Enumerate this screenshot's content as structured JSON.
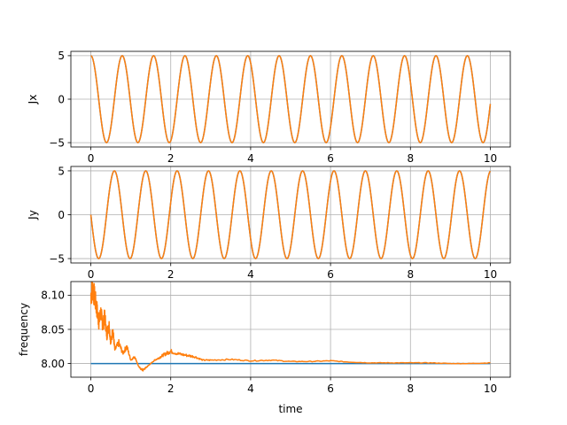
{
  "colors": {
    "blue": "#1f77b4",
    "orange": "#ff7f0e",
    "grid": "#b0b0b0"
  },
  "chart_data": [
    {
      "type": "line",
      "ylabel": "Jx",
      "xlabel": "",
      "xlim": [
        -0.5,
        10.5
      ],
      "ylim": [
        -5.5,
        5.5
      ],
      "xticks": [
        "0",
        "2",
        "4",
        "6",
        "8",
        "10"
      ],
      "yticks": [
        "5",
        "0",
        "−5"
      ],
      "grid": true,
      "series": [
        {
          "color": "#1f77b4",
          "function": "5*cos(8*t)",
          "t_range": [
            0,
            10
          ]
        },
        {
          "color": "#ff7f0e",
          "function": "5*cos(8*t)",
          "t_range": [
            0,
            10
          ]
        }
      ]
    },
    {
      "type": "line",
      "ylabel": "Jy",
      "xlabel": "",
      "xlim": [
        -0.5,
        10.5
      ],
      "ylim": [
        -5.5,
        5.5
      ],
      "xticks": [
        "0",
        "2",
        "4",
        "6",
        "8",
        "10"
      ],
      "yticks": [
        "5",
        "0",
        "−5"
      ],
      "grid": true,
      "series": [
        {
          "color": "#1f77b4",
          "function": "-5*sin(8*t)",
          "t_range": [
            0,
            10
          ]
        },
        {
          "color": "#ff7f0e",
          "function": "-5*sin(8*t)",
          "t_range": [
            0,
            10
          ]
        }
      ]
    },
    {
      "type": "line",
      "ylabel": "frequency",
      "xlabel": "time",
      "xlim": [
        -0.5,
        10.5
      ],
      "ylim": [
        7.98,
        8.12
      ],
      "xticks": [
        "0",
        "2",
        "4",
        "6",
        "8",
        "10"
      ],
      "yticks": [
        "8.10",
        "8.05",
        "8.00"
      ],
      "grid": true,
      "series": [
        {
          "color": "#1f77b4",
          "x": [
            0,
            10
          ],
          "y": [
            8.0,
            8.0
          ]
        },
        {
          "color": "#ff7f0e",
          "x": [
            0,
            0.05,
            0.1,
            0.15,
            0.2,
            0.25,
            0.3,
            0.35,
            0.4,
            0.45,
            0.5,
            0.55,
            0.6,
            0.7,
            0.8,
            0.9,
            1.0,
            1.1,
            1.2,
            1.3,
            1.4,
            1.5,
            1.6,
            1.7,
            1.8,
            1.9,
            2.0,
            2.2,
            2.4,
            2.6,
            2.8,
            3.0,
            3.5,
            4.0,
            4.5,
            5.0,
            5.5,
            6.0,
            6.5,
            7.0,
            7.5,
            8.0,
            8.5,
            9.0,
            9.5,
            10.0
          ],
          "y": [
            8.1,
            8.11,
            8.095,
            8.08,
            8.06,
            8.075,
            8.055,
            8.07,
            8.04,
            8.06,
            8.03,
            8.05,
            8.02,
            8.03,
            8.015,
            8.025,
            8.005,
            8.01,
            7.995,
            7.99,
            7.995,
            8.0,
            8.005,
            8.008,
            8.012,
            8.015,
            8.018,
            8.014,
            8.012,
            8.01,
            8.005,
            8.005,
            8.006,
            8.004,
            8.005,
            8.003,
            8.003,
            8.004,
            8.002,
            8.001,
            8.001,
            8.001,
            8.001,
            8.0,
            8.0,
            8.001
          ]
        }
      ]
    }
  ]
}
